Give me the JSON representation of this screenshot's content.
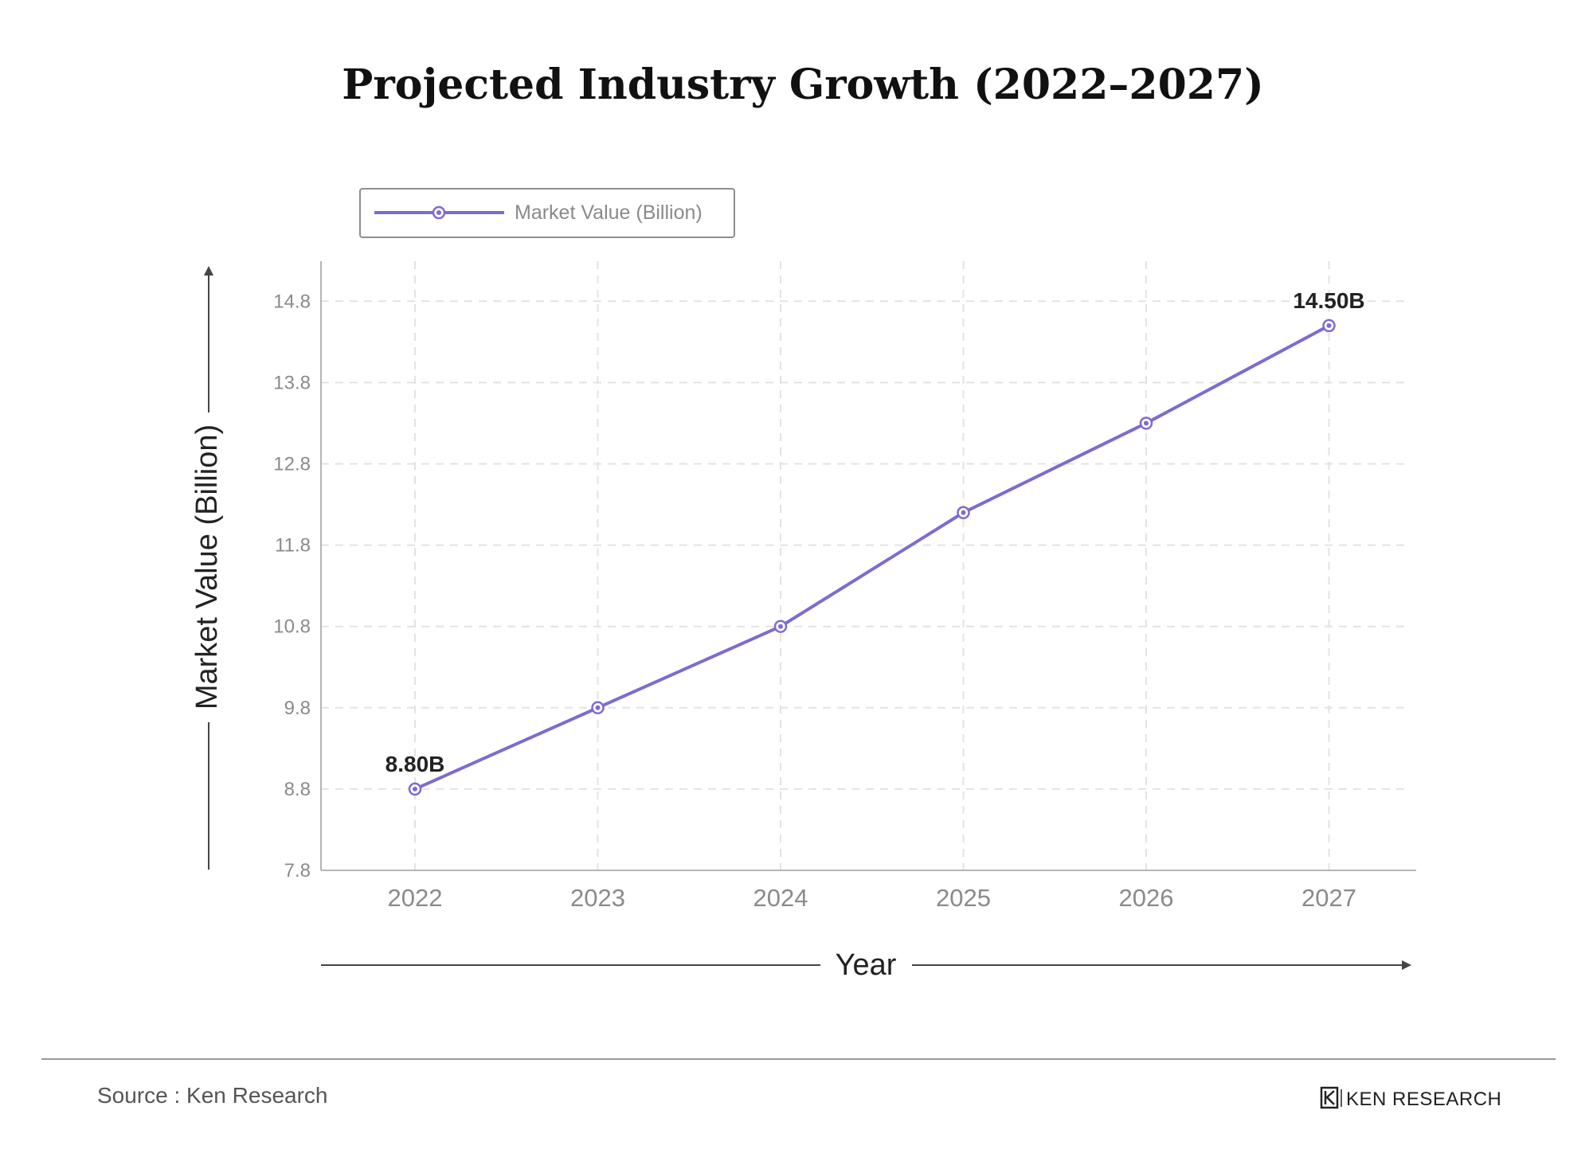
{
  "colors": {
    "series": "#7b6cd0",
    "grid": "#e3e3e3",
    "axis": "#b5b5b5",
    "text_dark": "#222222",
    "text_muted": "#8a8a8a",
    "divider": "#999999"
  },
  "chart_data": {
    "type": "line",
    "title": "Projected Industry Growth (2022–2027)",
    "xlabel": "Year",
    "ylabel": "Market Value (Billion)",
    "x": [
      "2022",
      "2023",
      "2024",
      "2025",
      "2026",
      "2027"
    ],
    "series": [
      {
        "name": "Market Value (Billion)",
        "values": [
          8.8,
          9.8,
          10.8,
          12.2,
          13.3,
          14.5
        ]
      }
    ],
    "yticks": [
      7.8,
      8.8,
      9.8,
      10.8,
      11.8,
      12.8,
      13.8,
      14.8
    ],
    "ytick_labels": [
      "7.8",
      "8.8",
      "9.8",
      "10.8",
      "11.8",
      "12.8",
      "13.8",
      "14.8"
    ],
    "ylim": [
      7.8,
      15.3
    ],
    "grid": true,
    "grid_style": "dashed",
    "legend_position": "top-left",
    "annotations": [
      {
        "index": 0,
        "text": "8.80B"
      },
      {
        "index": 5,
        "text": "14.50B"
      }
    ]
  },
  "footer": {
    "source": "Source : Ken Research",
    "brand": "KEN RESEARCH",
    "brand_logo_letter": "K"
  }
}
